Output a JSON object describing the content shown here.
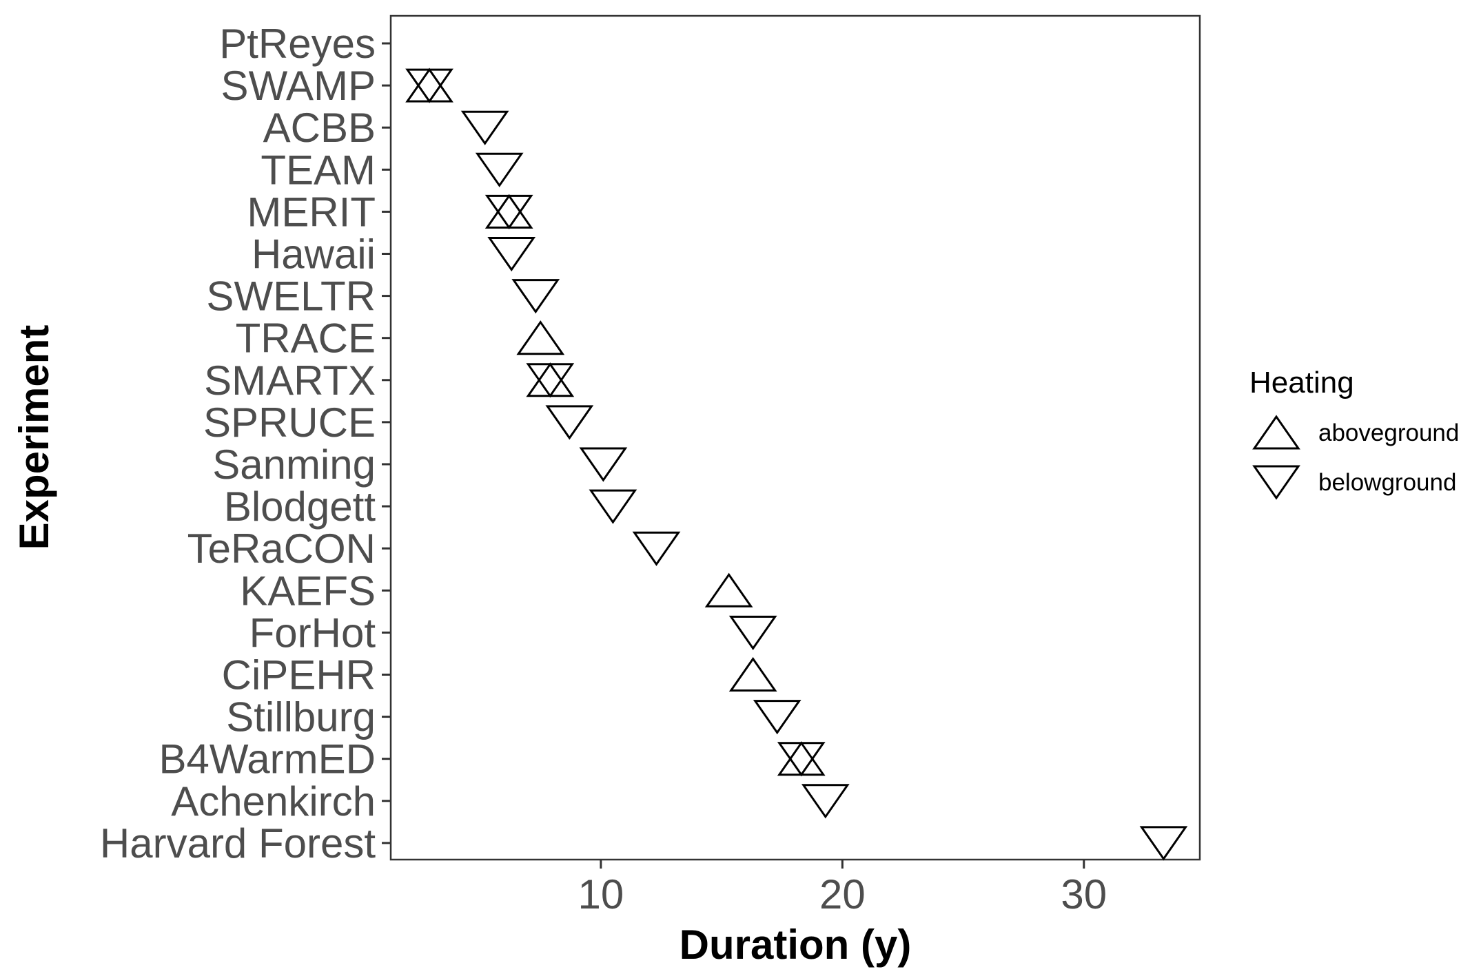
{
  "chart_data": {
    "type": "scatter",
    "xlabel": "Duration (y)",
    "ylabel": "Experiment",
    "xlim": [
      1.3,
      34.8
    ],
    "xticks": [
      10,
      20,
      30
    ],
    "xtick_labels": [
      "10",
      "20",
      "30"
    ],
    "categories": [
      "PtReyes",
      "SWAMP",
      "ACBB",
      "TEAM",
      "MERIT",
      "Hawaii",
      "SWELTR",
      "TRACE",
      "SMARTX",
      "SPRUCE",
      "Sanming",
      "Blodgett",
      "TeRaCON",
      "KAEFS",
      "ForHot",
      "CiPEHR",
      "Stillburg",
      "B4WarmED",
      "Achenkirch",
      "Harvard Forest"
    ],
    "grid": false,
    "legend": {
      "title": "Heating",
      "position": "right",
      "entries": [
        {
          "label": "aboveground",
          "shape": "triangle-up"
        },
        {
          "label": "belowground",
          "shape": "triangle-down"
        }
      ]
    },
    "series": [
      {
        "name": "aboveground",
        "shape": "triangle-up",
        "points": [
          {
            "y": "SWAMP",
            "x": 2.9
          },
          {
            "y": "MERIT",
            "x": 6.2
          },
          {
            "y": "TRACE",
            "x": 7.5
          },
          {
            "y": "SMARTX",
            "x": 7.9
          },
          {
            "y": "KAEFS",
            "x": 15.3
          },
          {
            "y": "CiPEHR",
            "x": 16.3
          },
          {
            "y": "B4WarmED",
            "x": 18.3
          }
        ]
      },
      {
        "name": "belowground",
        "shape": "triangle-down",
        "points": [
          {
            "y": "SWAMP",
            "x": 2.9
          },
          {
            "y": "ACBB",
            "x": 5.2
          },
          {
            "y": "TEAM",
            "x": 5.8
          },
          {
            "y": "MERIT",
            "x": 6.2
          },
          {
            "y": "Hawaii",
            "x": 6.3
          },
          {
            "y": "SWELTR",
            "x": 7.3
          },
          {
            "y": "SMARTX",
            "x": 7.9
          },
          {
            "y": "SPRUCE",
            "x": 8.7
          },
          {
            "y": "Sanming",
            "x": 10.1
          },
          {
            "y": "Blodgett",
            "x": 10.5
          },
          {
            "y": "TeRaCON",
            "x": 12.3
          },
          {
            "y": "ForHot",
            "x": 16.3
          },
          {
            "y": "Stillburg",
            "x": 17.3
          },
          {
            "y": "B4WarmED",
            "x": 18.3
          },
          {
            "y": "Achenkirch",
            "x": 19.3
          },
          {
            "y": "Harvard Forest",
            "x": 33.3
          }
        ]
      }
    ]
  }
}
